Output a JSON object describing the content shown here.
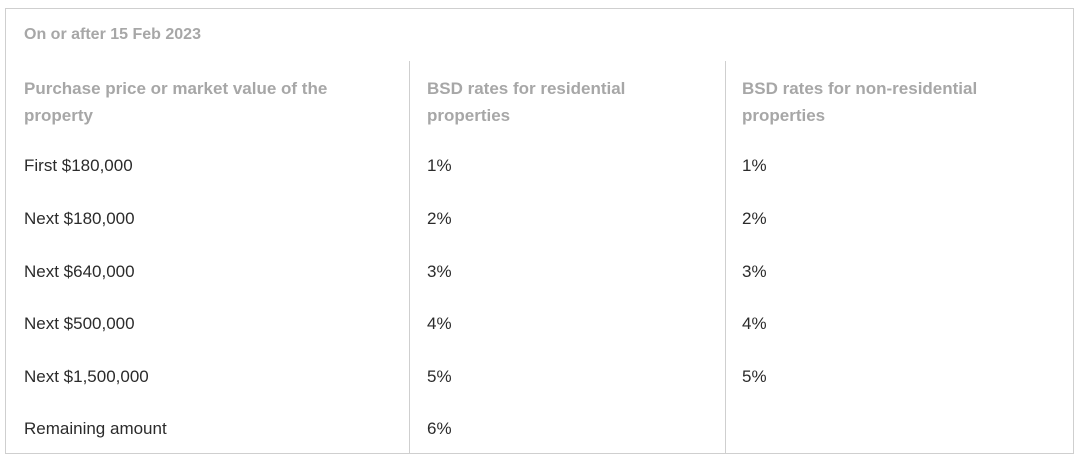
{
  "table": {
    "caption": "On or after 15 Feb 2023",
    "headers": [
      "Purchase price or market value of the property",
      "BSD rates for residential properties",
      "BSD rates for non-residential properties"
    ],
    "rows": [
      [
        "First $180,000",
        "1%",
        "1%"
      ],
      [
        "Next $180,000",
        "2%",
        "2%"
      ],
      [
        "Next $640,000",
        "3%",
        "3%"
      ],
      [
        "Next $500,000",
        "4%",
        "4%"
      ],
      [
        "Next $1,500,000",
        "5%",
        "5%"
      ],
      [
        "Remaining amount",
        "6%",
        ""
      ]
    ]
  }
}
